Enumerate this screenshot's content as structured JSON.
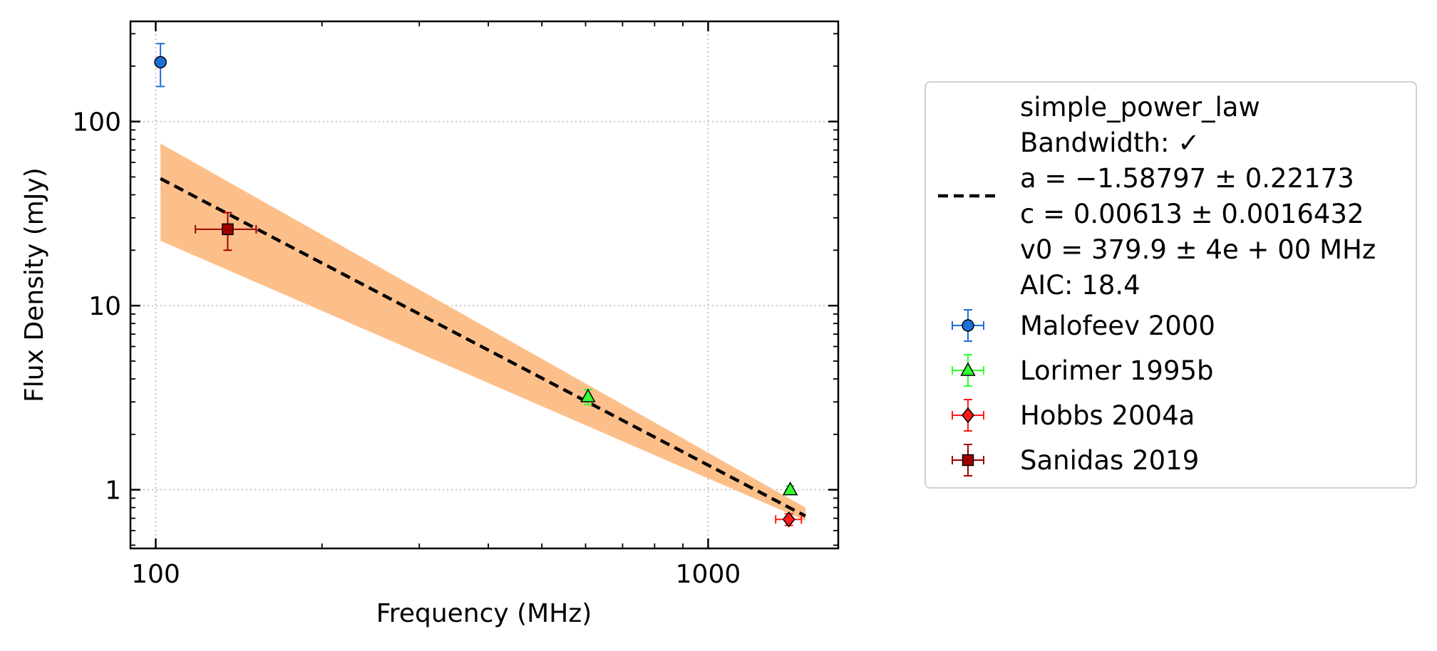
{
  "chart_data": {
    "type": "scatter",
    "xlabel": "Frequency (MHz)",
    "ylabel": "Flux Density (mJy)",
    "xscale": "log",
    "yscale": "log",
    "xlim": [
      90,
      1720
    ],
    "ylim": [
      0.48,
      350
    ],
    "grid": true,
    "legend_position": "outside-right",
    "x_ticks": [
      {
        "value": 100,
        "label": "100"
      },
      {
        "value": 1000,
        "label": "1000"
      }
    ],
    "y_ticks": [
      {
        "value": 1,
        "label": "1"
      },
      {
        "value": 10,
        "label": "10"
      },
      {
        "value": 100,
        "label": "100"
      }
    ],
    "fit": {
      "model": "simple_power_law",
      "label_lines": [
        "simple_power_law",
        "Bandwidth: ✓",
        "a = −1.58797 ± 0.22173",
        "c = 0.00613 ± 0.0016432",
        "v0 = 379.9 ± 4e + 00 MHz",
        "AIC: 18.4"
      ],
      "line_color": "#000000",
      "band_color": "#fdbf8a",
      "x": [
        102,
        1500
      ],
      "y": [
        49,
        0.72
      ],
      "band_lower": [
        22.5,
        0.68
      ],
      "band_upper": [
        76,
        0.8
      ]
    },
    "series": [
      {
        "name": "Malofeev 2000",
        "marker": "circle",
        "color": "#1f6fd9",
        "points": [
          {
            "x": 102,
            "y": 210,
            "xerr": [
              1,
              1
            ],
            "yerr": [
              55,
              55
            ]
          }
        ]
      },
      {
        "name": "Lorimer 1995b",
        "marker": "triangle",
        "color": "#33ff33",
        "points": [
          {
            "x": 606,
            "y": 3.2,
            "xerr": [
              0,
              0
            ],
            "yerr": [
              0.3,
              0.3
            ]
          },
          {
            "x": 1408,
            "y": 1.0,
            "xerr": [
              0,
              0
            ],
            "yerr": [
              0.05,
              0.05
            ]
          }
        ]
      },
      {
        "name": "Hobbs 2004a",
        "marker": "diamond",
        "color": "#ff1a1a",
        "points": [
          {
            "x": 1400,
            "y": 0.69,
            "xerr": [
              75,
              75
            ],
            "yerr": [
              0.05,
              0.05
            ]
          }
        ]
      },
      {
        "name": "Sanidas 2019",
        "marker": "square",
        "color": "#a00000",
        "points": [
          {
            "x": 135,
            "y": 26,
            "xerr": [
              17,
              17
            ],
            "yerr": [
              6,
              6
            ]
          }
        ]
      }
    ]
  }
}
